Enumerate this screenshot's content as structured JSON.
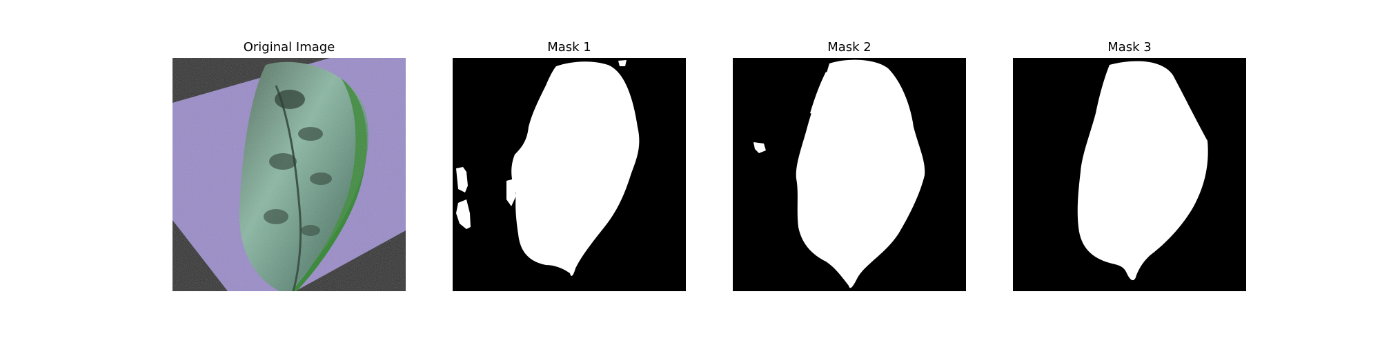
{
  "panels": [
    {
      "title": "Original Image",
      "kind": "photo"
    },
    {
      "title": "Mask 1",
      "kind": "mask"
    },
    {
      "title": "Mask 2",
      "kind": "mask"
    },
    {
      "title": "Mask 3",
      "kind": "mask"
    }
  ],
  "colors": {
    "background": "#ffffff",
    "mask_background": "#000000",
    "mask_foreground": "#ffffff",
    "paper": "#9a8cc8",
    "leaf": "#6d9a86",
    "leaf_edge": "#3a7a3a",
    "noise_bg": "#2a2a2a"
  }
}
